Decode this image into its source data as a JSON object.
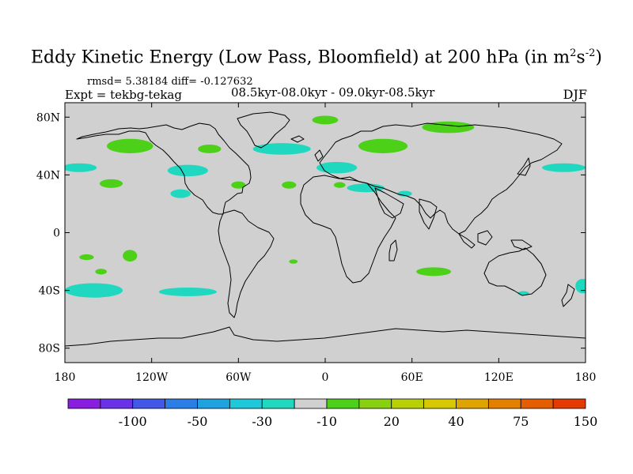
{
  "title": {
    "prefix": "Eddy Kinetic Energy (Low Pass, Bloomfield) at 200 hPa (in m",
    "sup1": "2",
    "mid": "s",
    "sup2": "-2",
    "suffix": ")"
  },
  "stats": "rmsd= 5.38184 diff= -0.127632",
  "experiment": "Expt = tekbg-tekag",
  "period": "08.5kyr-08.0kyr - 09.0kyr-08.5kyr",
  "season": "DJF",
  "map": {
    "background_color": "#d0d0d0",
    "lon_ticks": [
      {
        "lon": -180,
        "label": "180"
      },
      {
        "lon": -120,
        "label": "120W"
      },
      {
        "lon": -60,
        "label": "60W"
      },
      {
        "lon": 0,
        "label": "0"
      },
      {
        "lon": 60,
        "label": "60E"
      },
      {
        "lon": 120,
        "label": "120E"
      },
      {
        "lon": 180,
        "label": "180"
      }
    ],
    "lat_ticks": [
      {
        "lat": 80,
        "label": "80N"
      },
      {
        "lat": 40,
        "label": "40N"
      },
      {
        "lat": 0,
        "label": "0"
      },
      {
        "lat": -40,
        "label": "40S"
      },
      {
        "lat": -80,
        "label": "80S"
      }
    ],
    "anomaly_regions": [
      {
        "name": "n-pacific-west-positive",
        "level": "20",
        "lon": -135,
        "lat": 60,
        "rlon": 16,
        "rlat": 5
      },
      {
        "name": "n-pacific-negative",
        "level": "-10",
        "lon": -170,
        "lat": 45,
        "rlon": 12,
        "rlat": 3
      },
      {
        "name": "n-america-positive",
        "level": "20",
        "lon": -80,
        "lat": 58,
        "rlon": 8,
        "rlat": 3
      },
      {
        "name": "n-america-east-negative",
        "level": "-10",
        "lon": -95,
        "lat": 43,
        "rlon": 14,
        "rlat": 4
      },
      {
        "name": "e-pacific-positive",
        "level": "20",
        "lon": -148,
        "lat": 34,
        "rlon": 8,
        "rlat": 3
      },
      {
        "name": "c-america-negative",
        "level": "-10",
        "lon": -100,
        "lat": 27,
        "rlon": 7,
        "rlat": 3
      },
      {
        "name": "w-atlantic-positive",
        "level": "20",
        "lon": -60,
        "lat": 33,
        "rlon": 5,
        "rlat": 2.5
      },
      {
        "name": "n-atlantic-negative",
        "level": "-10",
        "lon": -30,
        "lat": 58,
        "rlon": 20,
        "rlat": 4
      },
      {
        "name": "arctic-atlantic-positive",
        "level": "20",
        "lon": 0,
        "lat": 78,
        "rlon": 9,
        "rlat": 3
      },
      {
        "name": "atlantic-positive",
        "level": "20",
        "lon": -25,
        "lat": 33,
        "rlon": 5,
        "rlat": 2.5
      },
      {
        "name": "europe-negative",
        "level": "-10",
        "lon": 8,
        "lat": 45,
        "rlon": 14,
        "rlat": 4
      },
      {
        "name": "n-asia-positive",
        "level": "20",
        "lon": 40,
        "lat": 60,
        "rlon": 17,
        "rlat": 5
      },
      {
        "name": "siberia-positive",
        "level": "20",
        "lon": 85,
        "lat": 73,
        "rlon": 18,
        "rlat": 4
      },
      {
        "name": "mediterranean-negative",
        "level": "-10",
        "lon": 28,
        "lat": 31,
        "rlon": 13,
        "rlat": 3
      },
      {
        "name": "middle-east-negative",
        "level": "-10",
        "lon": 55,
        "lat": 27,
        "rlon": 5,
        "rlat": 2
      },
      {
        "name": "n-africa-positive",
        "level": "20",
        "lon": 10,
        "lat": 33,
        "rlon": 4,
        "rlat": 2
      },
      {
        "name": "nw-pacific-negative",
        "level": "-10",
        "lon": 165,
        "lat": 45,
        "rlon": 15,
        "rlat": 3
      },
      {
        "name": "s-pacific-positive-a",
        "level": "20",
        "lon": -135,
        "lat": -16,
        "rlon": 5,
        "rlat": 4
      },
      {
        "name": "s-pacific-positive-b",
        "level": "20",
        "lon": -165,
        "lat": -17,
        "rlon": 5,
        "rlat": 2
      },
      {
        "name": "s-pacific-positive-c",
        "level": "20",
        "lon": -155,
        "lat": -27,
        "rlon": 4,
        "rlat": 2
      },
      {
        "name": "s-pacific-negative-a",
        "level": "-10",
        "lon": -160,
        "lat": -40,
        "rlon": 20,
        "rlat": 5
      },
      {
        "name": "s-pacific-negative-b",
        "level": "-10",
        "lon": -95,
        "lat": -41,
        "rlon": 20,
        "rlat": 3
      },
      {
        "name": "s-atlantic-positive",
        "level": "20",
        "lon": -22,
        "lat": -20,
        "rlon": 3,
        "rlat": 1.5
      },
      {
        "name": "indian-ocean-positive",
        "level": "20",
        "lon": 75,
        "lat": -27,
        "rlon": 12,
        "rlat": 3
      },
      {
        "name": "australia-negative",
        "level": "-10",
        "lon": 137,
        "lat": -42,
        "rlon": 4,
        "rlat": 1.5
      },
      {
        "name": "tasman-negative",
        "level": "-10",
        "lon": 178,
        "lat": -37,
        "rlon": 5,
        "rlat": 5
      }
    ]
  },
  "colorbar": {
    "colors": [
      "#8a1ee0",
      "#6a32e6",
      "#4458e8",
      "#2a7ee6",
      "#1fa2e0",
      "#1ec8d8",
      "#20d8c0",
      "#d0d0d0",
      "#4cd018",
      "#88d010",
      "#b8d008",
      "#d8c800",
      "#e0a400",
      "#e48000",
      "#e45e00",
      "#e43a00"
    ],
    "labels": [
      {
        "after_box": 2,
        "text": "-100"
      },
      {
        "after_box": 4,
        "text": "-50"
      },
      {
        "after_box": 6,
        "text": "-30"
      },
      {
        "after_box": 8,
        "text": "-10"
      },
      {
        "after_box": 10,
        "text": "20"
      },
      {
        "after_box": 12,
        "text": "40"
      },
      {
        "after_box": 14,
        "text": "75"
      },
      {
        "after_box": 16,
        "text": "150"
      }
    ]
  }
}
